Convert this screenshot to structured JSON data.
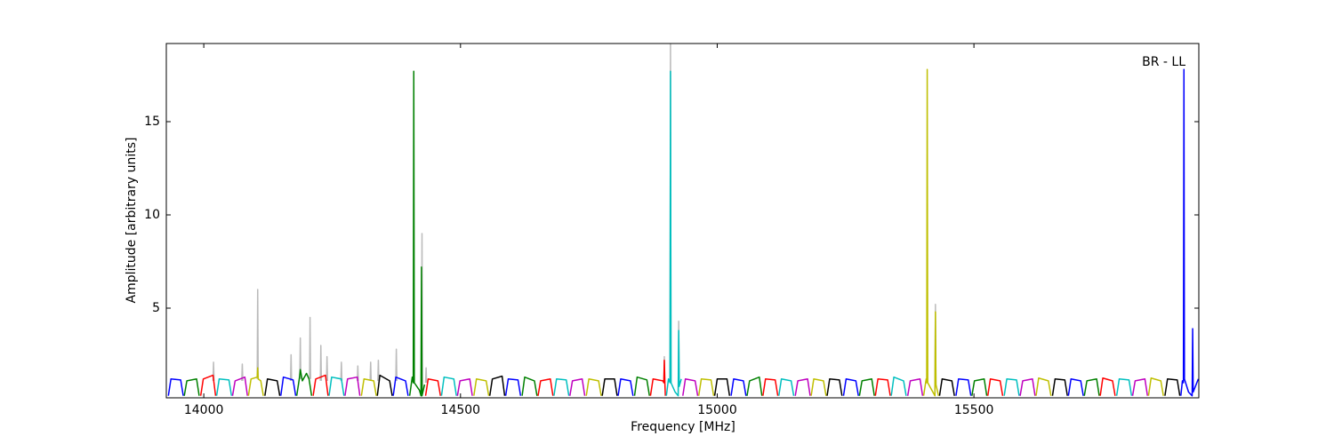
{
  "chart_data": {
    "type": "line",
    "annotation": "BR - LL",
    "xlabel": "Frequency [MHz]",
    "ylabel": "Amplitude [arbitrary units]",
    "xlim": [
      13927,
      15938
    ],
    "ylim": [
      0.19,
      19.19
    ],
    "xticks": [
      14000,
      14500,
      15000,
      15500
    ],
    "yticks": [
      5,
      10,
      15
    ],
    "series": [
      {
        "color": "#bbbbbb",
        "x": [
          14018,
          14019,
          14020,
          null,
          14074,
          14075,
          14076,
          null,
          14104,
          14105,
          14106,
          null,
          14169,
          14170,
          14171,
          null,
          14187,
          14188,
          14189,
          null,
          14206,
          14207,
          14208,
          null,
          14227,
          14228,
          14229,
          null,
          14239,
          14240,
          14241,
          null,
          14267,
          14268,
          14269,
          null,
          14299,
          14300,
          14301,
          null,
          14324,
          14325,
          14326,
          null,
          14339,
          14340,
          14341,
          null,
          14374,
          14375,
          14376,
          null,
          14424,
          14425,
          14426,
          null,
          14432,
          14433,
          14434,
          null,
          14896,
          14897,
          14898,
          null,
          14908,
          14909,
          14910,
          null,
          14924,
          14925,
          14926,
          null,
          15424,
          15425,
          15426
        ],
        "values": [
          1.1,
          2.1,
          1.1,
          null,
          1.1,
          2.0,
          1.1,
          null,
          1.2,
          6.0,
          1.2,
          null,
          1.1,
          2.5,
          1.1,
          null,
          1.2,
          3.4,
          1.2,
          null,
          1.2,
          4.5,
          1.2,
          null,
          1.1,
          3.0,
          1.1,
          null,
          1.1,
          2.4,
          1.1,
          null,
          1.1,
          2.1,
          1.1,
          null,
          1.1,
          1.9,
          1.1,
          null,
          1.1,
          2.1,
          1.1,
          null,
          1.1,
          2.2,
          1.1,
          null,
          1.1,
          2.8,
          1.1,
          null,
          0.5,
          9.0,
          0.5,
          null,
          1.0,
          1.8,
          1.0,
          null,
          1.0,
          2.4,
          1.0,
          null,
          1.0,
          19.2,
          1.0,
          null,
          0.5,
          4.3,
          0.8,
          null,
          0.5,
          5.2,
          0.9
        ]
      },
      {
        "color": "#0000ff",
        "x": [
          13931,
          13936,
          13955,
          13960
        ],
        "values": [
          0.3,
          1.2,
          1.15,
          0.3
        ]
      },
      {
        "color": "#008000",
        "x": [
          13962,
          13967,
          13986,
          13991
        ],
        "values": [
          0.3,
          1.1,
          1.2,
          0.3
        ]
      },
      {
        "color": "#ff0000",
        "x": [
          13994,
          13999,
          14018,
          14023
        ],
        "values": [
          0.3,
          1.2,
          1.4,
          0.3
        ]
      },
      {
        "color": "#00bfbf",
        "x": [
          14025,
          14030,
          14049,
          14054
        ],
        "values": [
          0.3,
          1.2,
          1.15,
          0.3
        ]
      },
      {
        "color": "#bf00bf",
        "x": [
          14056,
          14061,
          14080,
          14085
        ],
        "values": [
          0.3,
          1.1,
          1.3,
          0.3
        ]
      },
      {
        "color": "#bfbf00",
        "x": [
          14087,
          14092,
          14104,
          14105,
          14106,
          14111,
          14116
        ],
        "values": [
          0.3,
          1.2,
          1.3,
          1.8,
          1.2,
          1.1,
          0.3
        ]
      },
      {
        "color": "#000000",
        "x": [
          14119,
          14124,
          14143,
          14148
        ],
        "values": [
          0.3,
          1.2,
          1.1,
          0.3
        ]
      },
      {
        "color": "#0000ff",
        "x": [
          14150,
          14155,
          14174,
          14179
        ],
        "values": [
          0.3,
          1.3,
          1.15,
          0.3
        ]
      },
      {
        "color": "#008000",
        "x": [
          14181,
          14186,
          14188,
          14192,
          14200,
          14205,
          14210
        ],
        "values": [
          0.3,
          1.2,
          1.7,
          1.1,
          1.5,
          1.2,
          0.3
        ]
      },
      {
        "color": "#ff0000",
        "x": [
          14213,
          14218,
          14237,
          14242
        ],
        "values": [
          0.3,
          1.2,
          1.4,
          0.3
        ]
      },
      {
        "color": "#00bfbf",
        "x": [
          14244,
          14249,
          14268,
          14273
        ],
        "values": [
          0.3,
          1.3,
          1.2,
          0.3
        ]
      },
      {
        "color": "#bf00bf",
        "x": [
          14275,
          14280,
          14299,
          14304
        ],
        "values": [
          0.3,
          1.2,
          1.3,
          0.3
        ]
      },
      {
        "color": "#bfbf00",
        "x": [
          14307,
          14312,
          14331,
          14336
        ],
        "values": [
          0.3,
          1.2,
          1.1,
          0.3
        ]
      },
      {
        "color": "#000000",
        "x": [
          14338,
          14343,
          14362,
          14367
        ],
        "values": [
          0.3,
          1.4,
          1.1,
          0.3
        ]
      },
      {
        "color": "#0000ff",
        "x": [
          14369,
          14374,
          14393,
          14398
        ],
        "values": [
          0.3,
          1.3,
          1.1,
          0.3
        ]
      },
      {
        "color": "#008000",
        "x": [
          14401,
          14406,
          14408,
          14409,
          14410,
          14420,
          14423,
          14424,
          14425,
          14430
        ],
        "values": [
          0.3,
          1.3,
          1.0,
          17.7,
          1.0,
          0.6,
          0.3,
          7.2,
          0.3,
          0.9
        ]
      },
      {
        "color": "#ff0000",
        "x": [
          14432,
          14437,
          14456,
          14461
        ],
        "values": [
          0.3,
          1.2,
          1.1,
          0.3
        ]
      },
      {
        "color": "#00bfbf",
        "x": [
          14463,
          14468,
          14487,
          14492
        ],
        "values": [
          0.3,
          1.3,
          1.2,
          0.3
        ]
      },
      {
        "color": "#bf00bf",
        "x": [
          14494,
          14499,
          14518,
          14523
        ],
        "values": [
          0.3,
          1.1,
          1.2,
          0.3
        ]
      },
      {
        "color": "#bfbf00",
        "x": [
          14526,
          14531,
          14550,
          14555
        ],
        "values": [
          0.3,
          1.2,
          1.1,
          0.3
        ]
      },
      {
        "color": "#000000",
        "x": [
          14557,
          14562,
          14581,
          14586
        ],
        "values": [
          0.3,
          1.2,
          1.35,
          0.3
        ]
      },
      {
        "color": "#0000ff",
        "x": [
          14588,
          14593,
          14612,
          14617
        ],
        "values": [
          0.3,
          1.2,
          1.15,
          0.3
        ]
      },
      {
        "color": "#008000",
        "x": [
          14620,
          14625,
          14644,
          14649
        ],
        "values": [
          0.3,
          1.3,
          1.1,
          0.3
        ]
      },
      {
        "color": "#ff0000",
        "x": [
          14651,
          14656,
          14675,
          14680
        ],
        "values": [
          0.3,
          1.1,
          1.2,
          0.3
        ]
      },
      {
        "color": "#00bfbf",
        "x": [
          14682,
          14687,
          14706,
          14711
        ],
        "values": [
          0.3,
          1.2,
          1.15,
          0.3
        ]
      },
      {
        "color": "#bf00bf",
        "x": [
          14713,
          14718,
          14737,
          14742
        ],
        "values": [
          0.3,
          1.1,
          1.2,
          0.3
        ]
      },
      {
        "color": "#bfbf00",
        "x": [
          14745,
          14750,
          14769,
          14774
        ],
        "values": [
          0.3,
          1.2,
          1.1,
          0.3
        ]
      },
      {
        "color": "#000000",
        "x": [
          14776,
          14781,
          14800,
          14805
        ],
        "values": [
          0.3,
          1.2,
          1.2,
          0.3
        ]
      },
      {
        "color": "#0000ff",
        "x": [
          14807,
          14812,
          14831,
          14836
        ],
        "values": [
          0.3,
          1.2,
          1.1,
          0.3
        ]
      },
      {
        "color": "#008000",
        "x": [
          14839,
          14844,
          14863,
          14868
        ],
        "values": [
          0.3,
          1.3,
          1.15,
          0.3
        ]
      },
      {
        "color": "#ff0000",
        "x": [
          14870,
          14875,
          14894,
          14896,
          14897,
          14898,
          14899
        ],
        "values": [
          0.3,
          1.2,
          1.1,
          1.0,
          2.2,
          1.0,
          0.3
        ]
      },
      {
        "color": "#00bfbf",
        "x": [
          14901,
          14905,
          14908,
          14909,
          14910,
          14918,
          14924,
          14925,
          14926,
          14930
        ],
        "values": [
          0.3,
          1.2,
          1.0,
          17.7,
          1.0,
          0.5,
          0.3,
          3.8,
          0.8,
          1.2
        ]
      },
      {
        "color": "#bf00bf",
        "x": [
          14933,
          14938,
          14957,
          14962
        ],
        "values": [
          0.3,
          1.2,
          1.1,
          0.3
        ]
      },
      {
        "color": "#bfbf00",
        "x": [
          14964,
          14969,
          14988,
          14993
        ],
        "values": [
          0.3,
          1.2,
          1.15,
          0.3
        ]
      },
      {
        "color": "#000000",
        "x": [
          14995,
          15000,
          15019,
          15024
        ],
        "values": [
          0.3,
          1.2,
          1.2,
          0.3
        ]
      },
      {
        "color": "#0000ff",
        "x": [
          15027,
          15032,
          15051,
          15056
        ],
        "values": [
          0.3,
          1.2,
          1.1,
          0.3
        ]
      },
      {
        "color": "#008000",
        "x": [
          15058,
          15063,
          15082,
          15087
        ],
        "values": [
          0.3,
          1.1,
          1.3,
          0.3
        ]
      },
      {
        "color": "#ff0000",
        "x": [
          15089,
          15094,
          15113,
          15118
        ],
        "values": [
          0.3,
          1.2,
          1.15,
          0.3
        ]
      },
      {
        "color": "#00bfbf",
        "x": [
          15120,
          15125,
          15144,
          15149
        ],
        "values": [
          0.3,
          1.2,
          1.1,
          0.3
        ]
      },
      {
        "color": "#bf00bf",
        "x": [
          15152,
          15157,
          15176,
          15181
        ],
        "values": [
          0.3,
          1.1,
          1.2,
          0.3
        ]
      },
      {
        "color": "#bfbf00",
        "x": [
          15183,
          15188,
          15207,
          15212
        ],
        "values": [
          0.3,
          1.2,
          1.1,
          0.3
        ]
      },
      {
        "color": "#000000",
        "x": [
          15214,
          15219,
          15238,
          15243
        ],
        "values": [
          0.3,
          1.2,
          1.15,
          0.3
        ]
      },
      {
        "color": "#0000ff",
        "x": [
          15246,
          15251,
          15270,
          15275
        ],
        "values": [
          0.3,
          1.2,
          1.1,
          0.3
        ]
      },
      {
        "color": "#008000",
        "x": [
          15277,
          15282,
          15301,
          15306
        ],
        "values": [
          0.3,
          1.1,
          1.2,
          0.3
        ]
      },
      {
        "color": "#ff0000",
        "x": [
          15308,
          15313,
          15332,
          15337
        ],
        "values": [
          0.3,
          1.2,
          1.15,
          0.3
        ]
      },
      {
        "color": "#00bfbf",
        "x": [
          15339,
          15344,
          15363,
          15368
        ],
        "values": [
          0.3,
          1.3,
          1.1,
          0.3
        ]
      },
      {
        "color": "#bf00bf",
        "x": [
          15371,
          15376,
          15395,
          15400
        ],
        "values": [
          0.3,
          1.1,
          1.2,
          0.3
        ]
      },
      {
        "color": "#bfbf00",
        "x": [
          15402,
          15407,
          15408,
          15409,
          15410,
          15420,
          15424,
          15425,
          15426,
          15431
        ],
        "values": [
          0.3,
          1.2,
          1.0,
          17.8,
          1.0,
          0.5,
          0.3,
          4.8,
          0.9,
          0.3
        ]
      },
      {
        "color": "#000000",
        "x": [
          15433,
          15438,
          15457,
          15462
        ],
        "values": [
          0.3,
          1.2,
          1.1,
          0.3
        ]
      },
      {
        "color": "#0000ff",
        "x": [
          15465,
          15470,
          15489,
          15494
        ],
        "values": [
          0.3,
          1.2,
          1.15,
          0.3
        ]
      },
      {
        "color": "#008000",
        "x": [
          15496,
          15501,
          15520,
          15525
        ],
        "values": [
          0.3,
          1.1,
          1.2,
          0.3
        ]
      },
      {
        "color": "#ff0000",
        "x": [
          15527,
          15532,
          15551,
          15556
        ],
        "values": [
          0.3,
          1.2,
          1.1,
          0.3
        ]
      },
      {
        "color": "#00bfbf",
        "x": [
          15559,
          15564,
          15583,
          15588
        ],
        "values": [
          0.3,
          1.2,
          1.15,
          0.3
        ]
      },
      {
        "color": "#bf00bf",
        "x": [
          15590,
          15595,
          15614,
          15619
        ],
        "values": [
          0.3,
          1.1,
          1.2,
          0.3
        ]
      },
      {
        "color": "#bfbf00",
        "x": [
          15621,
          15626,
          15645,
          15650
        ],
        "values": [
          0.3,
          1.25,
          1.1,
          0.3
        ]
      },
      {
        "color": "#000000",
        "x": [
          15653,
          15658,
          15677,
          15682
        ],
        "values": [
          0.3,
          1.2,
          1.15,
          0.3
        ]
      },
      {
        "color": "#0000ff",
        "x": [
          15684,
          15689,
          15708,
          15713
        ],
        "values": [
          0.3,
          1.2,
          1.1,
          0.3
        ]
      },
      {
        "color": "#008000",
        "x": [
          15715,
          15720,
          15739,
          15744
        ],
        "values": [
          0.3,
          1.1,
          1.2,
          0.3
        ]
      },
      {
        "color": "#ff0000",
        "x": [
          15746,
          15751,
          15770,
          15775
        ],
        "values": [
          0.3,
          1.25,
          1.1,
          0.3
        ]
      },
      {
        "color": "#00bfbf",
        "x": [
          15778,
          15783,
          15802,
          15807
        ],
        "values": [
          0.3,
          1.2,
          1.15,
          0.3
        ]
      },
      {
        "color": "#bf00bf",
        "x": [
          15809,
          15814,
          15833,
          15838
        ],
        "values": [
          0.3,
          1.1,
          1.2,
          0.3
        ]
      },
      {
        "color": "#bfbf00",
        "x": [
          15840,
          15845,
          15864,
          15869
        ],
        "values": [
          0.3,
          1.25,
          1.1,
          0.3
        ]
      },
      {
        "color": "#000000",
        "x": [
          15872,
          15877,
          15896,
          15901
        ],
        "values": [
          0.3,
          1.2,
          1.15,
          0.3
        ]
      },
      {
        "color": "#0000ff",
        "x": [
          15903,
          15906,
          15908,
          15909,
          15910,
          15918,
          15925,
          15926,
          15927,
          15937
        ],
        "values": [
          0.3,
          1.1,
          1.0,
          17.8,
          1.2,
          0.5,
          0.3,
          3.9,
          0.5,
          1.2
        ]
      }
    ]
  }
}
